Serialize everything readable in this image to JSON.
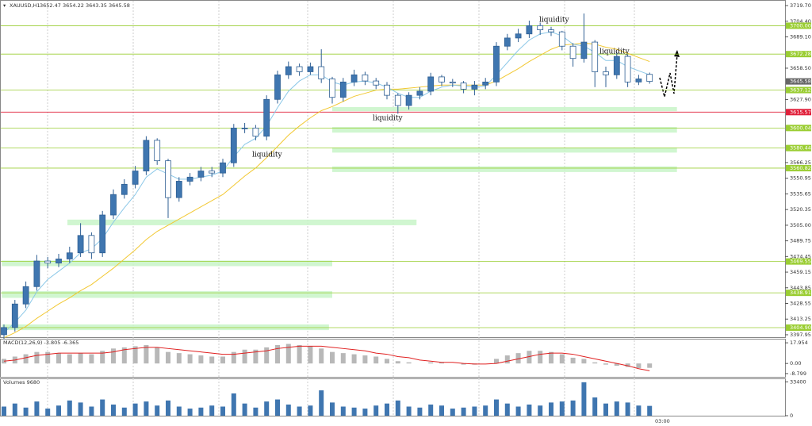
{
  "chart_data": {
    "type": "candlestick",
    "symbol": "XAUUSD,H1",
    "open": [
      3398,
      3405,
      3428,
      3445,
      3470,
      3468,
      3472,
      3478,
      3495,
      3478,
      3515,
      3535,
      3545,
      3558,
      3588,
      3568,
      3532,
      3548,
      3552,
      3558,
      3556,
      3566,
      3600,
      3600,
      3592,
      3628,
      3652,
      3660,
      3655,
      3660,
      3648,
      3630,
      3645,
      3652,
      3646,
      3642,
      3632,
      3622,
      3632,
      3636,
      3650,
      3645,
      3644,
      3638,
      3642,
      3645,
      3680,
      3688,
      3692,
      3700,
      3696,
      3694,
      3680,
      3668,
      3684,
      3655,
      3652,
      3670,
      3645,
      3652.47
    ],
    "high": [
      3408,
      3432,
      3450,
      3476,
      3474,
      3477,
      3484,
      3507,
      3498,
      3519,
      3540,
      3550,
      3563,
      3592,
      3590,
      3570,
      3552,
      3556,
      3562,
      3562,
      3570,
      3604,
      3605,
      3603,
      3632,
      3656,
      3665,
      3663,
      3664,
      3677,
      3650,
      3649,
      3657,
      3655,
      3649,
      3645,
      3634,
      3635,
      3640,
      3654,
      3652,
      3648,
      3646,
      3646,
      3649,
      3684,
      3692,
      3697,
      3705,
      3703,
      3699,
      3695,
      3683,
      3712,
      3686,
      3660,
      3674,
      3672,
      3652,
      3654.22
    ],
    "low": [
      3394,
      3401,
      3424,
      3441,
      3463,
      3464,
      3468,
      3474,
      3472,
      3474,
      3511,
      3531,
      3541,
      3554,
      3564,
      3512,
      3528,
      3544,
      3548,
      3552,
      3552,
      3562,
      3595,
      3588,
      3588,
      3624,
      3648,
      3651,
      3652,
      3644,
      3624,
      3626,
      3641,
      3642,
      3638,
      3628,
      3614,
      3618,
      3628,
      3632,
      3641,
      3640,
      3634,
      3632,
      3638,
      3641,
      3676,
      3684,
      3688,
      3691,
      3690,
      3676,
      3660,
      3664,
      3640,
      3640,
      3648,
      3640,
      3642,
      3643.35
    ],
    "close": [
      3405,
      3428,
      3445,
      3470,
      3468,
      3472,
      3478,
      3495,
      3478,
      3515,
      3535,
      3545,
      3558,
      3588,
      3568,
      3532,
      3548,
      3552,
      3558,
      3556,
      3566,
      3600,
      3600,
      3592,
      3628,
      3652,
      3660,
      3655,
      3660,
      3648,
      3630,
      3645,
      3652,
      3646,
      3642,
      3632,
      3622,
      3632,
      3636,
      3650,
      3645,
      3644,
      3638,
      3642,
      3645,
      3680,
      3688,
      3692,
      3700,
      3696,
      3694,
      3680,
      3668,
      3684,
      3655,
      3652,
      3670,
      3645,
      3648,
      3645.58
    ],
    "ma_fast": [
      3400,
      3410,
      3422,
      3440,
      3452,
      3460,
      3468,
      3478,
      3482,
      3492,
      3508,
      3522,
      3535,
      3552,
      3560,
      3555,
      3550,
      3550,
      3552,
      3554,
      3558,
      3572,
      3584,
      3590,
      3602,
      3620,
      3636,
      3646,
      3652,
      3652,
      3645,
      3642,
      3645,
      3646,
      3644,
      3640,
      3634,
      3630,
      3630,
      3636,
      3640,
      3642,
      3641,
      3640,
      3641,
      3652,
      3664,
      3676,
      3686,
      3692,
      3694,
      3690,
      3682,
      3680,
      3674,
      3666,
      3666,
      3660,
      3656,
      3652
    ],
    "ma_slow": [
      3395,
      3400,
      3406,
      3414,
      3421,
      3428,
      3434,
      3441,
      3447,
      3455,
      3463,
      3472,
      3481,
      3491,
      3499,
      3505,
      3511,
      3517,
      3523,
      3529,
      3535,
      3544,
      3553,
      3561,
      3571,
      3582,
      3593,
      3602,
      3610,
      3617,
      3621,
      3626,
      3631,
      3634,
      3637,
      3638,
      3638,
      3639,
      3640,
      3641,
      3642,
      3642,
      3642,
      3642,
      3642,
      3646,
      3652,
      3658,
      3665,
      3671,
      3677,
      3681,
      3682,
      3683,
      3682,
      3679,
      3677,
      3673,
      3669,
      3665
    ],
    "ylim": [
      3395.6,
      3723.6
    ],
    "yticks": [
      {
        "value": 3719.7,
        "label": "3719.70"
      },
      {
        "value": 3704.4,
        "label": "3704.40"
      },
      {
        "value": 3689.1,
        "label": "3689.10"
      },
      {
        "value": 3658.5,
        "label": "3658.50"
      },
      {
        "value": 3627.9,
        "label": "3627.90"
      },
      {
        "value": 3566.25,
        "label": "3566.25"
      },
      {
        "value": 3550.95,
        "label": "3550.95"
      },
      {
        "value": 3535.65,
        "label": "3535.65"
      },
      {
        "value": 3520.35,
        "label": "3520.35"
      },
      {
        "value": 3505.0,
        "label": "3505.00"
      },
      {
        "value": 3489.75,
        "label": "3489.75"
      },
      {
        "value": 3474.45,
        "label": "3474.45"
      },
      {
        "value": 3459.15,
        "label": "3459.15"
      },
      {
        "value": 3443.85,
        "label": "3443.85"
      },
      {
        "value": 3428.55,
        "label": "3428.55"
      },
      {
        "value": 3413.25,
        "label": "3413.25"
      },
      {
        "value": 3397.95,
        "label": "3397.95"
      }
    ],
    "levels": [
      {
        "value": 3700.0,
        "label": "3700.00"
      },
      {
        "value": 3672.28,
        "label": "3672.28"
      },
      {
        "value": 3637.12,
        "label": "3637.12"
      },
      {
        "value": 3600.04,
        "label": "3600.04"
      },
      {
        "value": 3580.44,
        "label": "3580.44"
      },
      {
        "value": 3560.82,
        "label": "3560.82"
      },
      {
        "value": 3469.55,
        "label": "3469.55"
      },
      {
        "value": 3438.91,
        "label": "3438.91"
      },
      {
        "value": 3404.9,
        "label": "3404.90"
      }
    ],
    "level_color": "#9acd32",
    "red_level": {
      "value": 3615.57,
      "label": "3615.57"
    },
    "zones": [
      {
        "low": 3616.5,
        "high": 3620.5,
        "start": 30,
        "end": 61.5
      },
      {
        "low": 3595.5,
        "high": 3601,
        "start": 30,
        "end": 61.5
      },
      {
        "low": 3576,
        "high": 3581,
        "start": 30,
        "end": 61.5
      },
      {
        "low": 3557,
        "high": 3562.5,
        "start": 30,
        "end": 61.5
      },
      {
        "low": 3505,
        "high": 3510.5,
        "start": 5.8,
        "end": 37.7
      },
      {
        "low": 3465,
        "high": 3470.5,
        "start": -0.2,
        "end": 30
      },
      {
        "low": 3434,
        "high": 3440.5,
        "start": -0.2,
        "end": 30
      },
      {
        "low": 3402.5,
        "high": 3408,
        "start": -0.2,
        "end": 29.7
      }
    ],
    "annotations": [
      "liquidity",
      "liquidity",
      "liquidity",
      "liquidity"
    ],
    "macd": {
      "label": "MACD(12,26,9) -3.805 -6.365",
      "values": [
        4,
        6,
        8,
        10,
        10,
        9,
        8,
        9,
        8,
        11,
        13,
        14,
        15,
        16,
        14,
        10,
        9,
        8,
        7,
        6,
        6,
        10,
        12,
        12,
        14,
        16,
        17,
        16,
        15,
        13,
        10,
        9,
        8,
        7,
        6,
        4,
        2,
        1,
        0,
        1,
        1,
        0,
        -1,
        -1,
        0,
        4,
        7,
        9,
        11,
        11,
        10,
        8,
        5,
        4,
        1,
        -1,
        -2,
        -3,
        -4,
        -3.805
      ],
      "signal": [
        2,
        3,
        5,
        7,
        8,
        9,
        9,
        9,
        9,
        9,
        10,
        12,
        13,
        14,
        14,
        13,
        12,
        11,
        10,
        9,
        8,
        8,
        9,
        10,
        11,
        13,
        14,
        15,
        15,
        15,
        14,
        13,
        12,
        11,
        9,
        8,
        6,
        5,
        3,
        2,
        1,
        1,
        0,
        -0.5,
        -0.5,
        0,
        2,
        4,
        6,
        8,
        9,
        9,
        8,
        6,
        4,
        2,
        0,
        -2,
        -4.5,
        -6.365
      ],
      "ylim": [
        -11.6,
        20.8
      ],
      "yticks": [
        17.954,
        {
          "value": 0,
          "label": "0.00"
        },
        -8.799
      ]
    },
    "volume": {
      "label": "Volumes 9680",
      "values": [
        9000,
        12000,
        8000,
        14000,
        7000,
        10000,
        15000,
        13000,
        9000,
        16000,
        11000,
        8000,
        12000,
        14000,
        10000,
        15000,
        9000,
        7000,
        8000,
        10000,
        9000,
        22000,
        12000,
        8000,
        14000,
        16000,
        11000,
        9000,
        10000,
        25000,
        13000,
        9000,
        8000,
        7000,
        10000,
        12000,
        15000,
        9000,
        8000,
        11000,
        10000,
        7000,
        8000,
        9000,
        10000,
        16000,
        12000,
        9000,
        11000,
        10000,
        13000,
        14000,
        15000,
        33000,
        18000,
        12000,
        14000,
        13000,
        10000,
        9680
      ],
      "ylim": [
        0,
        36000
      ],
      "yticks": [
        33400,
        0
      ]
    },
    "x_label": "03:00"
  }
}
